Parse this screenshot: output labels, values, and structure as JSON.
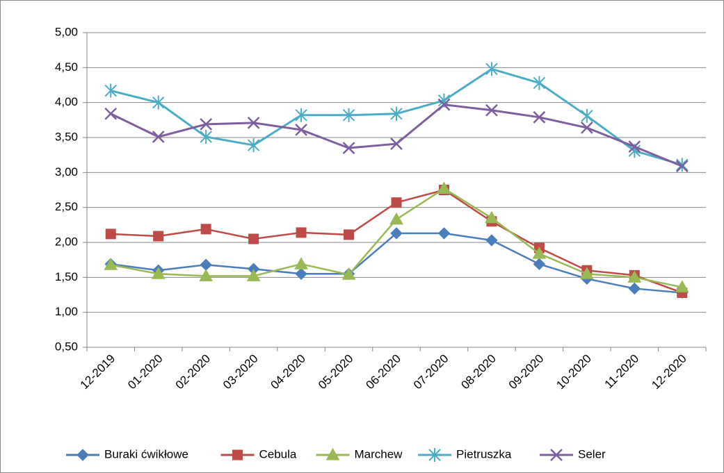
{
  "chart_data": {
    "type": "line",
    "x": [
      "12-2019",
      "01-2020",
      "02-2020",
      "03-2020",
      "04-2020",
      "05-2020",
      "06-2020",
      "07-2020",
      "08-2020",
      "09-2020",
      "10-2020",
      "11-2020",
      "12-2020"
    ],
    "series": [
      {
        "name": "Buraki ćwikłowe",
        "color": "#4a7ebb",
        "marker": "diamond",
        "values": [
          1.69,
          1.6,
          1.68,
          1.62,
          1.55,
          1.55,
          2.13,
          2.13,
          2.03,
          1.69,
          1.48,
          1.34,
          1.28
        ]
      },
      {
        "name": "Cebula",
        "color": "#be4b48",
        "marker": "square",
        "values": [
          2.12,
          2.09,
          2.19,
          2.05,
          2.14,
          2.11,
          2.57,
          2.75,
          2.3,
          1.92,
          1.6,
          1.53,
          1.28
        ]
      },
      {
        "name": "Marchew",
        "color": "#98b954",
        "marker": "triangle",
        "values": [
          1.68,
          1.55,
          1.52,
          1.52,
          1.69,
          1.54,
          2.33,
          2.77,
          2.35,
          1.84,
          1.55,
          1.5,
          1.36
        ]
      },
      {
        "name": "Pietruszka",
        "color": "#4bacc6",
        "marker": "star",
        "values": [
          4.17,
          4.0,
          3.51,
          3.39,
          3.82,
          3.82,
          3.84,
          4.03,
          4.48,
          4.28,
          3.81,
          3.31,
          3.11
        ]
      },
      {
        "name": "Seler",
        "color": "#7d5fa0",
        "marker": "x",
        "values": [
          3.84,
          3.51,
          3.69,
          3.71,
          3.61,
          3.35,
          3.41,
          3.97,
          3.89,
          3.79,
          3.64,
          3.37,
          3.09
        ]
      }
    ],
    "ylim": [
      0.5,
      5
    ],
    "yticks": [
      {
        "value": 0.5,
        "label": "0,50"
      },
      {
        "value": 1,
        "label": "1,00"
      },
      {
        "value": 1.5,
        "label": "1,50"
      },
      {
        "value": 2,
        "label": "2,00"
      },
      {
        "value": 2.5,
        "label": "2,50"
      },
      {
        "value": 3,
        "label": "3,00"
      },
      {
        "value": 3.5,
        "label": "3,50"
      },
      {
        "value": 4,
        "label": "4,00"
      },
      {
        "value": 4.5,
        "label": "4,50"
      },
      {
        "value": 5,
        "label": "5,00"
      }
    ],
    "grid": true,
    "legend": "bottom"
  }
}
